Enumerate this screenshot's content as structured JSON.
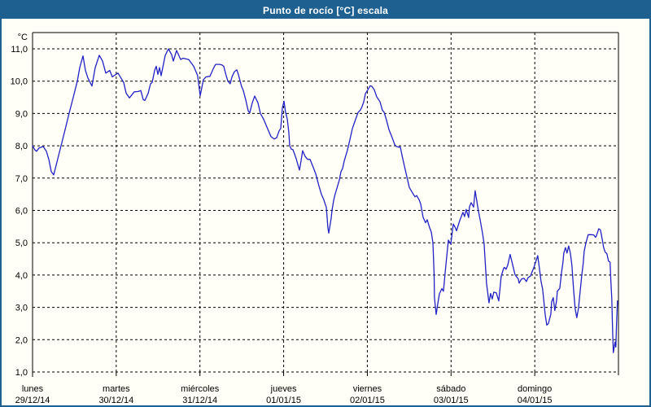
{
  "window": {
    "title": "Punto de rocío [°C] escala"
  },
  "colors": {
    "frame_border": "#1e6191",
    "titlebar_bg": "#1e6191",
    "titlebar_text": "#ffffff",
    "plot_bg": "#fffef7",
    "grid": "#000000",
    "axis": "#000000",
    "text": "#000000",
    "line": "#2222c4"
  },
  "chart_data": {
    "type": "line",
    "title": "Punto de rocío [°C] escala",
    "ylabel": "°C",
    "xlabel": "",
    "ylim": [
      1,
      11
    ],
    "y_tick_step": 1,
    "y_tick_labels": [
      "11,0",
      "10,0",
      "9,0",
      "8,0",
      "7,0",
      "6,0",
      "5,0",
      "4,0",
      "3,0",
      "2,0",
      "1,0"
    ],
    "grid": "dashed",
    "legend_position": "none",
    "x_days": [
      {
        "name": "lunes",
        "date": "29/12/14"
      },
      {
        "name": "martes",
        "date": "30/12/14"
      },
      {
        "name": "miércoles",
        "date": "31/12/14"
      },
      {
        "name": "jueves",
        "date": "01/01/15"
      },
      {
        "name": "viernes",
        "date": "02/01/15"
      },
      {
        "name": "sábado",
        "date": "03/01/15"
      },
      {
        "name": "domingo",
        "date": "04/01/15"
      }
    ],
    "series": [
      {
        "name": "Punto de rocío [°C]",
        "x_unit": "days_since_2014-12-29",
        "y_unit": "°C",
        "points": [
          [
            0.0,
            8.0
          ],
          [
            0.029,
            7.87
          ],
          [
            0.049,
            7.83
          ],
          [
            0.078,
            7.93
          ],
          [
            0.126,
            7.98
          ],
          [
            0.165,
            7.83
          ],
          [
            0.194,
            7.58
          ],
          [
            0.224,
            7.2
          ],
          [
            0.253,
            7.1
          ],
          [
            0.292,
            7.5
          ],
          [
            0.34,
            8.0
          ],
          [
            0.389,
            8.5
          ],
          [
            0.437,
            9.0
          ],
          [
            0.486,
            9.5
          ],
          [
            0.535,
            10.0
          ],
          [
            0.564,
            10.42
          ],
          [
            0.603,
            10.78
          ],
          [
            0.632,
            10.33
          ],
          [
            0.661,
            10.1
          ],
          [
            0.71,
            9.85
          ],
          [
            0.749,
            10.42
          ],
          [
            0.797,
            10.8
          ],
          [
            0.836,
            10.62
          ],
          [
            0.875,
            10.25
          ],
          [
            0.923,
            10.33
          ],
          [
            0.953,
            10.13
          ],
          [
            0.972,
            10.17
          ],
          [
            1.021,
            10.25
          ],
          [
            1.089,
            9.96
          ],
          [
            1.118,
            9.63
          ],
          [
            1.157,
            9.48
          ],
          [
            1.215,
            9.67
          ],
          [
            1.264,
            9.68
          ],
          [
            1.293,
            9.71
          ],
          [
            1.322,
            9.43
          ],
          [
            1.342,
            9.4
          ],
          [
            1.381,
            9.62
          ],
          [
            1.41,
            9.92
          ],
          [
            1.429,
            9.96
          ],
          [
            1.458,
            10.33
          ],
          [
            1.478,
            10.46
          ],
          [
            1.497,
            10.21
          ],
          [
            1.517,
            10.42
          ],
          [
            1.536,
            10.17
          ],
          [
            1.585,
            10.79
          ],
          [
            1.623,
            11.0
          ],
          [
            1.662,
            10.82
          ],
          [
            1.682,
            10.62
          ],
          [
            1.721,
            10.95
          ],
          [
            1.769,
            10.67
          ],
          [
            1.798,
            10.71
          ],
          [
            1.866,
            10.67
          ],
          [
            1.925,
            10.46
          ],
          [
            1.973,
            10.17
          ],
          [
            2.003,
            9.55
          ],
          [
            2.041,
            10.04
          ],
          [
            2.071,
            10.13
          ],
          [
            2.119,
            10.15
          ],
          [
            2.158,
            10.38
          ],
          [
            2.187,
            10.52
          ],
          [
            2.236,
            10.52
          ],
          [
            2.265,
            10.5
          ],
          [
            2.284,
            10.46
          ],
          [
            2.314,
            10.17
          ],
          [
            2.333,
            10.0
          ],
          [
            2.362,
            9.92
          ],
          [
            2.382,
            10.13
          ],
          [
            2.411,
            10.29
          ],
          [
            2.44,
            10.35
          ],
          [
            2.459,
            10.21
          ],
          [
            2.498,
            9.83
          ],
          [
            2.518,
            9.71
          ],
          [
            2.547,
            9.42
          ],
          [
            2.576,
            9.08
          ],
          [
            2.595,
            9.02
          ],
          [
            2.625,
            9.33
          ],
          [
            2.654,
            9.54
          ],
          [
            2.693,
            9.33
          ],
          [
            2.722,
            9.0
          ],
          [
            2.761,
            8.82
          ],
          [
            2.8,
            8.58
          ],
          [
            2.848,
            8.29
          ],
          [
            2.887,
            8.21
          ],
          [
            2.917,
            8.25
          ],
          [
            2.946,
            8.46
          ],
          [
            2.965,
            8.54
          ],
          [
            2.985,
            9.17
          ],
          [
            3.004,
            9.38
          ],
          [
            3.023,
            9.04
          ],
          [
            3.043,
            8.83
          ],
          [
            3.062,
            8.42
          ],
          [
            3.072,
            8.0
          ],
          [
            3.091,
            7.9
          ],
          [
            3.111,
            7.88
          ],
          [
            3.13,
            7.75
          ],
          [
            3.15,
            7.6
          ],
          [
            3.169,
            7.42
          ],
          [
            3.189,
            7.25
          ],
          [
            3.208,
            7.54
          ],
          [
            3.227,
            7.85
          ],
          [
            3.257,
            7.67
          ],
          [
            3.286,
            7.58
          ],
          [
            3.315,
            7.58
          ],
          [
            3.354,
            7.33
          ],
          [
            3.383,
            7.13
          ],
          [
            3.422,
            6.75
          ],
          [
            3.451,
            6.5
          ],
          [
            3.48,
            6.33
          ],
          [
            3.5,
            6.17
          ],
          [
            3.51,
            6.1
          ],
          [
            3.529,
            5.45
          ],
          [
            3.539,
            5.3
          ],
          [
            3.568,
            5.76
          ],
          [
            3.578,
            6.0
          ],
          [
            3.597,
            6.31
          ],
          [
            3.617,
            6.52
          ],
          [
            3.646,
            6.77
          ],
          [
            3.665,
            6.94
          ],
          [
            3.685,
            7.2
          ],
          [
            3.704,
            7.3
          ],
          [
            3.724,
            7.53
          ],
          [
            3.762,
            7.86
          ],
          [
            3.792,
            8.19
          ],
          [
            3.821,
            8.53
          ],
          [
            3.86,
            8.82
          ],
          [
            3.889,
            9.03
          ],
          [
            3.918,
            9.11
          ],
          [
            3.937,
            9.21
          ],
          [
            3.957,
            9.36
          ],
          [
            3.976,
            9.61
          ],
          [
            4.005,
            9.73
          ],
          [
            4.035,
            9.86
          ],
          [
            4.054,
            9.84
          ],
          [
            4.083,
            9.73
          ],
          [
            4.112,
            9.52
          ],
          [
            4.151,
            9.36
          ],
          [
            4.18,
            9.1
          ],
          [
            4.2,
            9.04
          ],
          [
            4.229,
            8.79
          ],
          [
            4.258,
            8.5
          ],
          [
            4.297,
            8.25
          ],
          [
            4.326,
            8.04
          ],
          [
            4.346,
            7.98
          ],
          [
            4.375,
            7.96
          ],
          [
            4.394,
            7.96
          ],
          [
            4.414,
            7.71
          ],
          [
            4.443,
            7.37
          ],
          [
            4.472,
            7.04
          ],
          [
            4.501,
            6.71
          ],
          [
            4.54,
            6.54
          ],
          [
            4.569,
            6.42
          ],
          [
            4.589,
            6.46
          ],
          [
            4.618,
            6.33
          ],
          [
            4.637,
            6.21
          ],
          [
            4.666,
            5.79
          ],
          [
            4.696,
            5.62
          ],
          [
            4.715,
            5.71
          ],
          [
            4.744,
            5.46
          ],
          [
            4.764,
            5.33
          ],
          [
            4.783,
            5.0
          ],
          [
            4.798,
            4.0
          ],
          [
            4.802,
            3.3
          ],
          [
            4.812,
            3.05
          ],
          [
            4.822,
            2.78
          ],
          [
            4.841,
            3.1
          ],
          [
            4.861,
            3.42
          ],
          [
            4.89,
            3.58
          ],
          [
            4.909,
            3.5
          ],
          [
            4.938,
            4.3
          ],
          [
            4.968,
            5.08
          ],
          [
            4.997,
            4.96
          ],
          [
            5.026,
            5.58
          ],
          [
            5.045,
            5.5
          ],
          [
            5.065,
            5.37
          ],
          [
            5.104,
            5.69
          ],
          [
            5.142,
            5.94
          ],
          [
            5.162,
            5.81
          ],
          [
            5.181,
            6.03
          ],
          [
            5.21,
            5.78
          ],
          [
            5.22,
            6.11
          ],
          [
            5.24,
            6.24
          ],
          [
            5.269,
            6.1
          ],
          [
            5.288,
            6.61
          ],
          [
            5.307,
            6.3
          ],
          [
            5.327,
            5.98
          ],
          [
            5.346,
            5.73
          ],
          [
            5.375,
            5.3
          ],
          [
            5.395,
            4.97
          ],
          [
            5.424,
            3.74
          ],
          [
            5.453,
            3.14
          ],
          [
            5.473,
            3.43
          ],
          [
            5.492,
            3.26
          ],
          [
            5.511,
            3.47
          ],
          [
            5.541,
            3.45
          ],
          [
            5.57,
            3.2
          ],
          [
            5.599,
            3.96
          ],
          [
            5.628,
            4.21
          ],
          [
            5.638,
            4.24
          ],
          [
            5.657,
            4.18
          ],
          [
            5.677,
            4.3
          ],
          [
            5.706,
            4.64
          ],
          [
            5.745,
            4.22
          ],
          [
            5.764,
            4.01
          ],
          [
            5.803,
            3.88
          ],
          [
            5.813,
            3.75
          ],
          [
            5.842,
            3.88
          ],
          [
            5.871,
            3.9
          ],
          [
            5.9,
            3.8
          ],
          [
            5.92,
            3.92
          ],
          [
            5.949,
            3.97
          ],
          [
            5.968,
            4.1
          ],
          [
            5.993,
            4.26
          ],
          [
            6.017,
            4.45
          ],
          [
            6.036,
            4.6
          ],
          [
            6.056,
            4.2
          ],
          [
            6.075,
            3.8
          ],
          [
            6.095,
            3.55
          ],
          [
            6.124,
            2.79
          ],
          [
            6.143,
            2.45
          ],
          [
            6.163,
            2.5
          ],
          [
            6.192,
            2.79
          ],
          [
            6.202,
            3.17
          ],
          [
            6.221,
            3.3
          ],
          [
            6.24,
            2.9
          ],
          [
            6.26,
            3.2
          ],
          [
            6.27,
            3.5
          ],
          [
            6.299,
            3.59
          ],
          [
            6.318,
            4.05
          ],
          [
            6.337,
            4.39
          ],
          [
            6.347,
            4.68
          ],
          [
            6.367,
            4.85
          ],
          [
            6.386,
            4.68
          ],
          [
            6.405,
            4.9
          ],
          [
            6.425,
            4.68
          ],
          [
            6.444,
            4.3
          ],
          [
            6.464,
            3.54
          ],
          [
            6.483,
            2.96
          ],
          [
            6.502,
            2.68
          ],
          [
            6.522,
            2.96
          ],
          [
            6.541,
            3.46
          ],
          [
            6.561,
            3.96
          ],
          [
            6.58,
            4.39
          ],
          [
            6.59,
            4.72
          ],
          [
            6.609,
            4.97
          ],
          [
            6.638,
            5.25
          ],
          [
            6.677,
            5.25
          ],
          [
            6.706,
            5.24
          ],
          [
            6.726,
            5.17
          ],
          [
            6.735,
            5.2
          ],
          [
            6.765,
            5.43
          ],
          [
            6.784,
            5.4
          ],
          [
            6.794,
            5.28
          ],
          [
            6.813,
            5.0
          ],
          [
            6.823,
            4.85
          ],
          [
            6.842,
            4.71
          ],
          [
            6.862,
            4.66
          ],
          [
            6.881,
            4.43
          ],
          [
            6.9,
            4.4
          ],
          [
            6.91,
            3.8
          ],
          [
            6.92,
            3.28
          ],
          [
            6.93,
            2.3
          ],
          [
            6.939,
            1.6
          ],
          [
            6.959,
            1.93
          ],
          [
            6.969,
            1.77
          ],
          [
            6.978,
            2.52
          ],
          [
            6.988,
            3.2
          ]
        ]
      }
    ]
  }
}
